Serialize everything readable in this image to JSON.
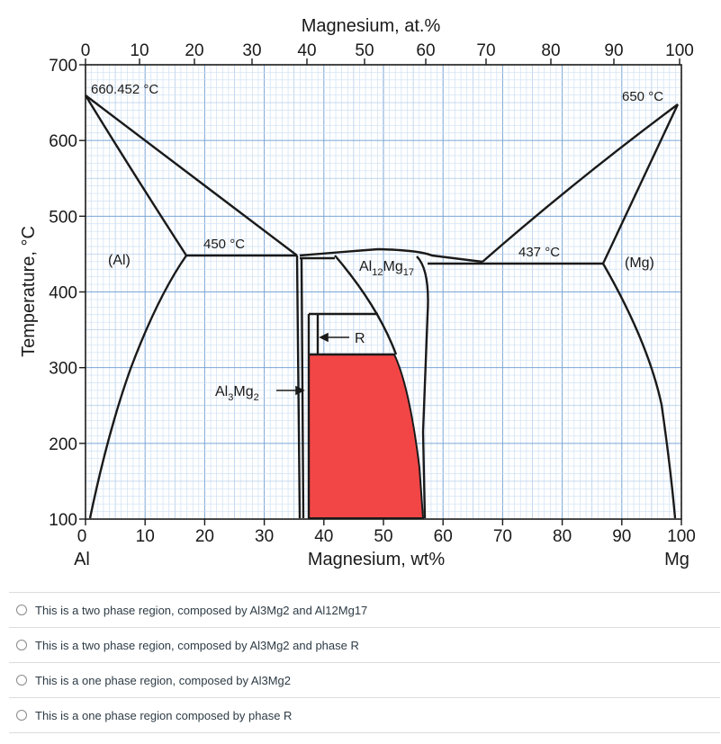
{
  "diagram": {
    "type": "phase-diagram",
    "title_top_axis": "Magnesium, at.%",
    "top_ticks": [
      "0",
      "10",
      "20",
      "30",
      "40",
      "50",
      "60",
      "70",
      "80",
      "90",
      "100"
    ],
    "bottom_ticks": [
      "0",
      "10",
      "20",
      "30",
      "40",
      "50",
      "60",
      "70",
      "80",
      "90",
      "100"
    ],
    "x_axis_title": "Magnesium, wt%",
    "y_axis_title": "Temperature, °C",
    "y_ticks": [
      "700",
      "600",
      "500",
      "400",
      "300",
      "200",
      "100"
    ],
    "left_element": "Al",
    "right_element": "Mg",
    "temp_labels": {
      "al_melting": "660.452 °C",
      "mg_melting": "650 °C",
      "eutectic_al": "450 °C",
      "eutectic_mg": "437 °C"
    },
    "regions": {
      "al_solid": "(Al)",
      "mg_solid": "(Mg)",
      "r_label": "R",
      "al3mg2": {
        "main": "Al",
        "sub1": "3",
        "mid": "Mg",
        "sub2": "2"
      },
      "al12mg17": {
        "main": "Al",
        "sub1": "12",
        "mid": "Mg",
        "sub2": "17"
      }
    },
    "highlight_color": "#f24646"
  },
  "question": {
    "options": [
      "This is a two phase region, composed by Al3Mg2 and Al12Mg17",
      "This is a two phase region, composed by Al3Mg2 and phase R",
      "This is a one phase region, composed by Al3Mg2",
      "This is a one phase region composed by phase R"
    ]
  }
}
